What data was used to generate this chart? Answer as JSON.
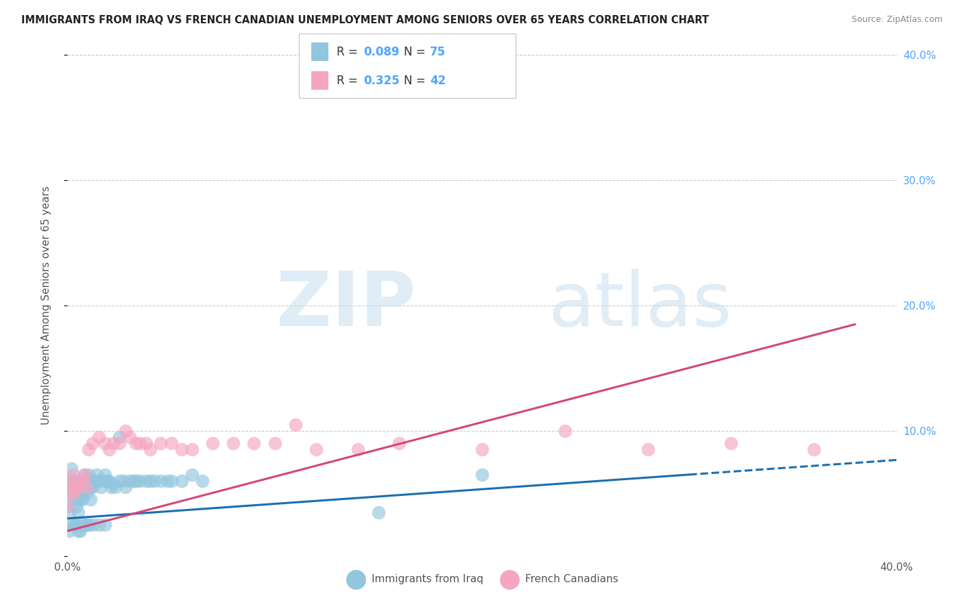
{
  "title": "IMMIGRANTS FROM IRAQ VS FRENCH CANADIAN UNEMPLOYMENT AMONG SENIORS OVER 65 YEARS CORRELATION CHART",
  "source": "Source: ZipAtlas.com",
  "ylabel": "Unemployment Among Seniors over 65 years",
  "xmin": 0.0,
  "xmax": 0.4,
  "ymin": 0.0,
  "ymax": 0.4,
  "color_blue": "#92c5de",
  "color_pink": "#f4a6c0",
  "color_blue_line": "#1a6faf",
  "color_pink_line": "#d6447a",
  "color_right_labels": "#4da6ff",
  "series1_x": [
    0.0,
    0.001,
    0.001,
    0.001,
    0.002,
    0.002,
    0.002,
    0.003,
    0.003,
    0.003,
    0.004,
    0.004,
    0.004,
    0.005,
    0.005,
    0.005,
    0.005,
    0.006,
    0.006,
    0.006,
    0.007,
    0.007,
    0.007,
    0.008,
    0.008,
    0.009,
    0.009,
    0.01,
    0.01,
    0.011,
    0.011,
    0.012,
    0.012,
    0.013,
    0.014,
    0.015,
    0.016,
    0.017,
    0.018,
    0.019,
    0.02,
    0.021,
    0.022,
    0.023,
    0.025,
    0.027,
    0.028,
    0.03,
    0.032,
    0.033,
    0.035,
    0.038,
    0.04,
    0.042,
    0.045,
    0.048,
    0.05,
    0.055,
    0.06,
    0.065,
    0.001,
    0.002,
    0.003,
    0.004,
    0.005,
    0.006,
    0.007,
    0.008,
    0.009,
    0.01,
    0.012,
    0.015,
    0.018,
    0.025,
    0.15,
    0.2
  ],
  "series1_y": [
    0.04,
    0.055,
    0.035,
    0.06,
    0.05,
    0.06,
    0.07,
    0.055,
    0.045,
    0.06,
    0.05,
    0.04,
    0.06,
    0.045,
    0.055,
    0.06,
    0.035,
    0.05,
    0.045,
    0.055,
    0.06,
    0.05,
    0.045,
    0.055,
    0.065,
    0.05,
    0.06,
    0.055,
    0.065,
    0.055,
    0.045,
    0.06,
    0.055,
    0.06,
    0.065,
    0.06,
    0.055,
    0.06,
    0.065,
    0.06,
    0.06,
    0.055,
    0.058,
    0.055,
    0.06,
    0.06,
    0.055,
    0.06,
    0.06,
    0.06,
    0.06,
    0.06,
    0.06,
    0.06,
    0.06,
    0.06,
    0.06,
    0.06,
    0.065,
    0.06,
    0.02,
    0.025,
    0.025,
    0.025,
    0.02,
    0.02,
    0.025,
    0.025,
    0.025,
    0.025,
    0.025,
    0.025,
    0.025,
    0.095,
    0.035,
    0.065
  ],
  "series2_x": [
    0.0,
    0.001,
    0.002,
    0.002,
    0.003,
    0.003,
    0.004,
    0.005,
    0.006,
    0.007,
    0.008,
    0.009,
    0.01,
    0.012,
    0.015,
    0.018,
    0.02,
    0.022,
    0.025,
    0.028,
    0.03,
    0.033,
    0.035,
    0.038,
    0.04,
    0.045,
    0.05,
    0.055,
    0.06,
    0.07,
    0.08,
    0.09,
    0.1,
    0.11,
    0.12,
    0.14,
    0.16,
    0.2,
    0.24,
    0.28,
    0.32,
    0.36
  ],
  "series2_y": [
    0.04,
    0.06,
    0.05,
    0.055,
    0.05,
    0.065,
    0.055,
    0.055,
    0.06,
    0.06,
    0.065,
    0.055,
    0.085,
    0.09,
    0.095,
    0.09,
    0.085,
    0.09,
    0.09,
    0.1,
    0.095,
    0.09,
    0.09,
    0.09,
    0.085,
    0.09,
    0.09,
    0.085,
    0.085,
    0.09,
    0.09,
    0.09,
    0.09,
    0.105,
    0.085,
    0.085,
    0.09,
    0.085,
    0.1,
    0.085,
    0.09,
    0.085
  ],
  "trend1_x0": 0.0,
  "trend1_x1": 0.3,
  "trend1_y0": 0.03,
  "trend1_y1": 0.065,
  "trend1_dash_x0": 0.3,
  "trend1_dash_x1": 0.4,
  "trend2_x0": 0.0,
  "trend2_x1": 0.38,
  "trend2_y0": 0.02,
  "trend2_y1": 0.185
}
